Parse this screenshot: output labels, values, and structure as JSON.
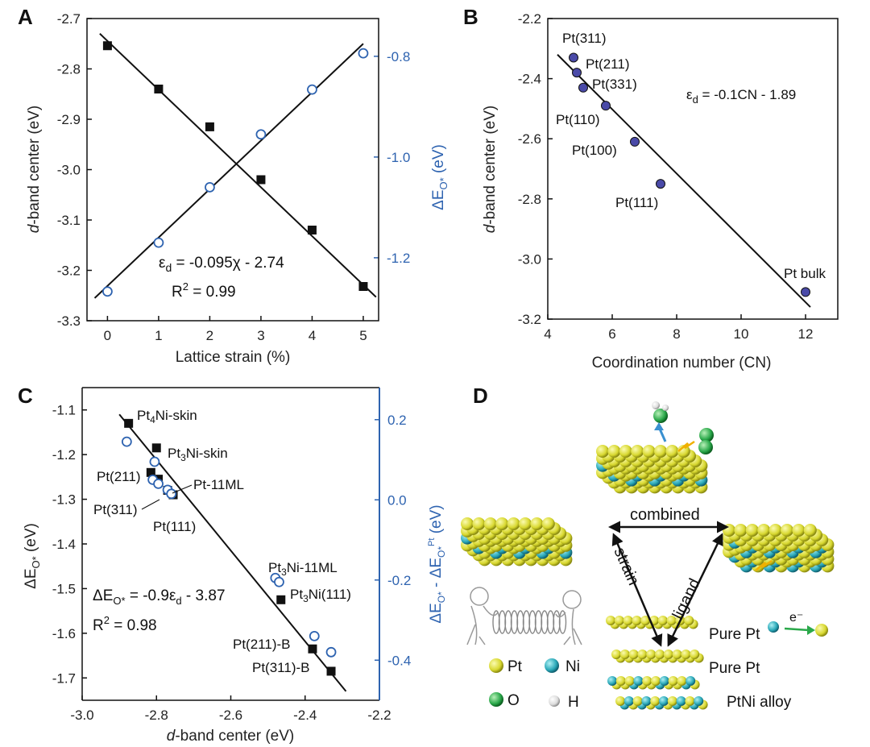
{
  "panel_letters": [
    "A",
    "B",
    "C",
    "D"
  ],
  "chart_data": [
    {
      "panel": "A",
      "type": "scatter",
      "xlabel": "Lattice strain (%)",
      "ylabel": "d-band center (eV)",
      "ylabel_right": "ΔE_O* (eV)",
      "xlim": [
        -0.4,
        5.3
      ],
      "ylim": [
        -3.3,
        -2.7
      ],
      "ylim_right": [
        -1.325,
        -0.725
      ],
      "x_ticks": [
        0,
        1,
        2,
        3,
        4,
        5
      ],
      "y_ticks": [
        -2.7,
        -2.8,
        -2.9,
        -3.0,
        -3.1,
        -3.2,
        -3.3
      ],
      "y_ticks_right": [
        -0.8,
        -1.0,
        -1.2
      ],
      "series": [
        {
          "axis": "left",
          "marker": "filled-square",
          "color": "#111111",
          "x": [
            0,
            1,
            2,
            3,
            4,
            5
          ],
          "y": [
            -2.754,
            -2.84,
            -2.915,
            -3.02,
            -3.12,
            -3.232
          ]
        },
        {
          "axis": "right",
          "marker": "open-circle",
          "color": "#2e63b0",
          "x": [
            0,
            1,
            2,
            3,
            4,
            5
          ],
          "y": [
            -1.267,
            -1.17,
            -1.06,
            -0.955,
            -0.866,
            -0.794
          ]
        }
      ],
      "fit_lines": [
        {
          "axis": "left",
          "x": [
            -0.15,
            5.25
          ],
          "y": [
            -2.73,
            -3.253
          ]
        },
        {
          "axis": "right",
          "x": [
            -0.25,
            5.0
          ],
          "y": [
            -1.28,
            -0.775
          ]
        }
      ],
      "annotations": [
        "ε_d = -0.095χ - 2.74",
        "R² = 0.99"
      ]
    },
    {
      "panel": "B",
      "type": "scatter",
      "xlabel": "Coordination number (CN)",
      "ylabel": "d-band center (eV)",
      "xlim": [
        4,
        13
      ],
      "ylim": [
        -3.2,
        -2.2
      ],
      "x_ticks": [
        4,
        6,
        8,
        10,
        12
      ],
      "y_ticks": [
        -2.2,
        -2.4,
        -2.6,
        -2.8,
        -3.0,
        -3.2
      ],
      "series": [
        {
          "marker": "filled-circle",
          "color": "#4a4aa8",
          "x": [
            4.8,
            4.9,
            5.1,
            5.8,
            6.7,
            7.5,
            12.0
          ],
          "y": [
            -2.33,
            -2.38,
            -2.43,
            -2.49,
            -2.61,
            -2.75,
            -3.11
          ]
        }
      ],
      "point_labels": [
        "Pt(311)",
        "Pt(211)",
        "Pt(331)",
        "Pt(110)",
        "Pt(100)",
        "Pt(111)",
        "Pt bulk"
      ],
      "fit_lines": [
        {
          "x": [
            4.3,
            12.15
          ],
          "y": [
            -2.32,
            -3.16
          ]
        }
      ],
      "annotations": [
        "ε_d = -0.1CN - 1.89"
      ]
    },
    {
      "panel": "C",
      "type": "scatter",
      "xlabel": "d-band center (eV)",
      "ylabel": "ΔE_O* (eV)",
      "ylabel_right": "ΔE_O* - ΔE_O*^Pt (eV)",
      "xlim": [
        -3.0,
        -2.2
      ],
      "ylim": [
        -1.75,
        -1.05
      ],
      "ylim_right": [
        -0.5,
        0.28
      ],
      "x_ticks": [
        -3.0,
        -2.8,
        -2.6,
        -2.4,
        -2.2
      ],
      "y_ticks": [
        -1.1,
        -1.2,
        -1.3,
        -1.4,
        -1.5,
        -1.6,
        -1.7
      ],
      "y_ticks_right": [
        0.2,
        0.0,
        -0.2,
        -0.4
      ],
      "series": [
        {
          "axis": "left",
          "marker": "filled-square",
          "color": "#111111",
          "x": [
            -2.875,
            -2.8,
            -2.815,
            -2.795,
            -2.77,
            -2.755,
            -2.465,
            -2.38,
            -2.33
          ],
          "y": [
            -1.13,
            -1.185,
            -1.24,
            -1.255,
            -1.28,
            -1.29,
            -1.525,
            -1.635,
            -1.685
          ]
        },
        {
          "axis": "right",
          "marker": "open-circle",
          "color": "#2e63b0",
          "x": [
            -2.88,
            -2.805,
            -2.81,
            -2.795,
            -2.77,
            -2.76,
            -2.48,
            -2.47,
            -2.375,
            -2.33
          ],
          "y": [
            0.145,
            0.095,
            0.05,
            0.04,
            0.025,
            0.015,
            -0.195,
            -0.205,
            -0.34,
            -0.38
          ]
        }
      ],
      "point_labels": [
        "Pt₄Ni-skin",
        "Pt₃Ni-skin",
        "Pt(211)",
        "Pt-11ML",
        "Pt(311)",
        "Pt(111)",
        "Pt₃Ni-11ML",
        "Pt₃Ni(111)",
        "Pt(211)-B",
        "Pt(311)-B"
      ],
      "fit_lines": [
        {
          "axis": "left",
          "x": [
            -2.9,
            -2.29
          ],
          "y": [
            -1.11,
            -1.73
          ]
        }
      ],
      "annotations": [
        "ΔE_O* = -0.9ε_d - 3.87",
        "R² = 0.98"
      ]
    }
  ],
  "panel_d": {
    "labels": {
      "combined": "combined",
      "strain": "strain",
      "ligand": "ligand",
      "layer1": "Pure Pt",
      "layer2": "Pure Pt",
      "layer3": "PtNi alloy",
      "electron": "e⁻"
    },
    "legend": [
      {
        "name": "Pt",
        "color": "#e0e040"
      },
      {
        "name": "Ni",
        "color": "#2aa8b8"
      },
      {
        "name": "O",
        "color": "#2aa84a"
      },
      {
        "name": "H",
        "color": "#e8e8e8"
      }
    ]
  }
}
